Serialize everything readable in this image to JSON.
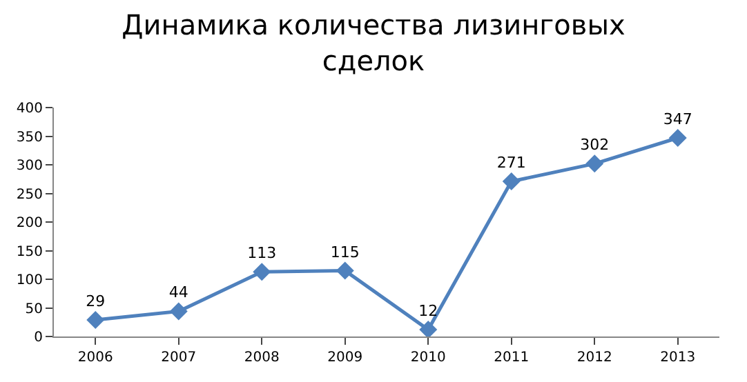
{
  "chart_data": {
    "type": "line",
    "title": "Динамика количества лизинговых сделок",
    "categories": [
      "2006",
      "2007",
      "2008",
      "2009",
      "2010",
      "2011",
      "2012",
      "2013"
    ],
    "series": [
      {
        "color": "#4f81bd",
        "values": [
          29,
          44,
          113,
          115,
          12,
          271,
          302,
          347
        ]
      }
    ],
    "ylim": [
      0,
      400
    ],
    "yticks": [
      0,
      50,
      100,
      150,
      200,
      250,
      300,
      350,
      400
    ],
    "legend": false,
    "marker": "diamond",
    "line_style": "solid",
    "data_labels": true
  }
}
